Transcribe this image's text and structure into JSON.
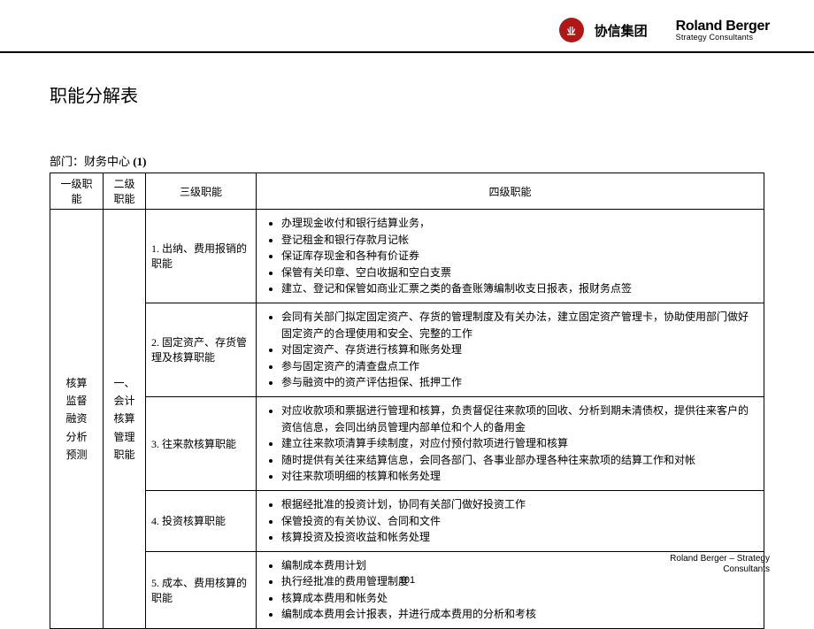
{
  "header": {
    "logo_text": "业",
    "group_name": "协信集团",
    "rb_name": "Roland Berger",
    "rb_sub": "Strategy Consultants"
  },
  "title": "职能分解表",
  "dept_label": "部门：财务中心 ",
  "dept_num": "(1)",
  "table": {
    "headers": [
      "一级职能",
      "二级职能",
      "三级职能",
      "四级职能"
    ],
    "level1": "核算\n监督\n融资\n分析\n预测",
    "level2": "一、\n会计\n核算\n管理\n职能",
    "rows": [
      {
        "l3": "1. 出纳、费用报销的职能",
        "l4": [
          "办理现金收付和银行结算业务，",
          "登记租金和银行存款月记帐",
          "保证库存现金和各种有价证券",
          "保管有关印章、空白收据和空白支票",
          "建立、登记和保管如商业汇票之类的备查账簿编制收支日报表，报财务点签"
        ]
      },
      {
        "l3": "2. 固定资产、存货管理及核算职能",
        "l4": [
          "会同有关部门拟定固定资产、存货的管理制度及有关办法，建立固定资产管理卡，协助使用部门做好固定资产的合理使用和安全、完整的工作",
          "对固定资产、存货进行核算和账务处理",
          "参与固定资产的清查盘点工作",
          "参与融资中的资产评估担保、抵押工作"
        ]
      },
      {
        "l3": "3. 往来款核算职能",
        "l4": [
          "对应收款项和票据进行管理和核算，负责督促往来款项的回收、分析到期未清债权，提供往来客户的资信信息，会同出纳员管理内部单位和个人的备用金",
          "建立往来款项清算手续制度，对应付预付款项进行管理和核算",
          "随时提供有关往来结算信息，会同各部门、各事业部办理各种往来款项的结算工作和对帐",
          "对往来款项明细的核算和帐务处理"
        ]
      },
      {
        "l3": "4. 投资核算职能",
        "l4": [
          "根据经批准的投资计划，协同有关部门做好投资工作",
          "保管投资的有关协议、合同和文件",
          "核算投资及投资收益和帐务处理"
        ]
      },
      {
        "l3": "5. 成本、费用核算的职能",
        "l4": [
          "编制成本费用计划",
          "执行经批准的费用管理制度",
          "核算成本费用和帐务处",
          "编制成本费用会计报表，并进行成本费用的分析和考核"
        ]
      }
    ]
  },
  "footer": {
    "line1": "Roland Berger – Strategy",
    "line2": "Consultants",
    "page": "101"
  }
}
